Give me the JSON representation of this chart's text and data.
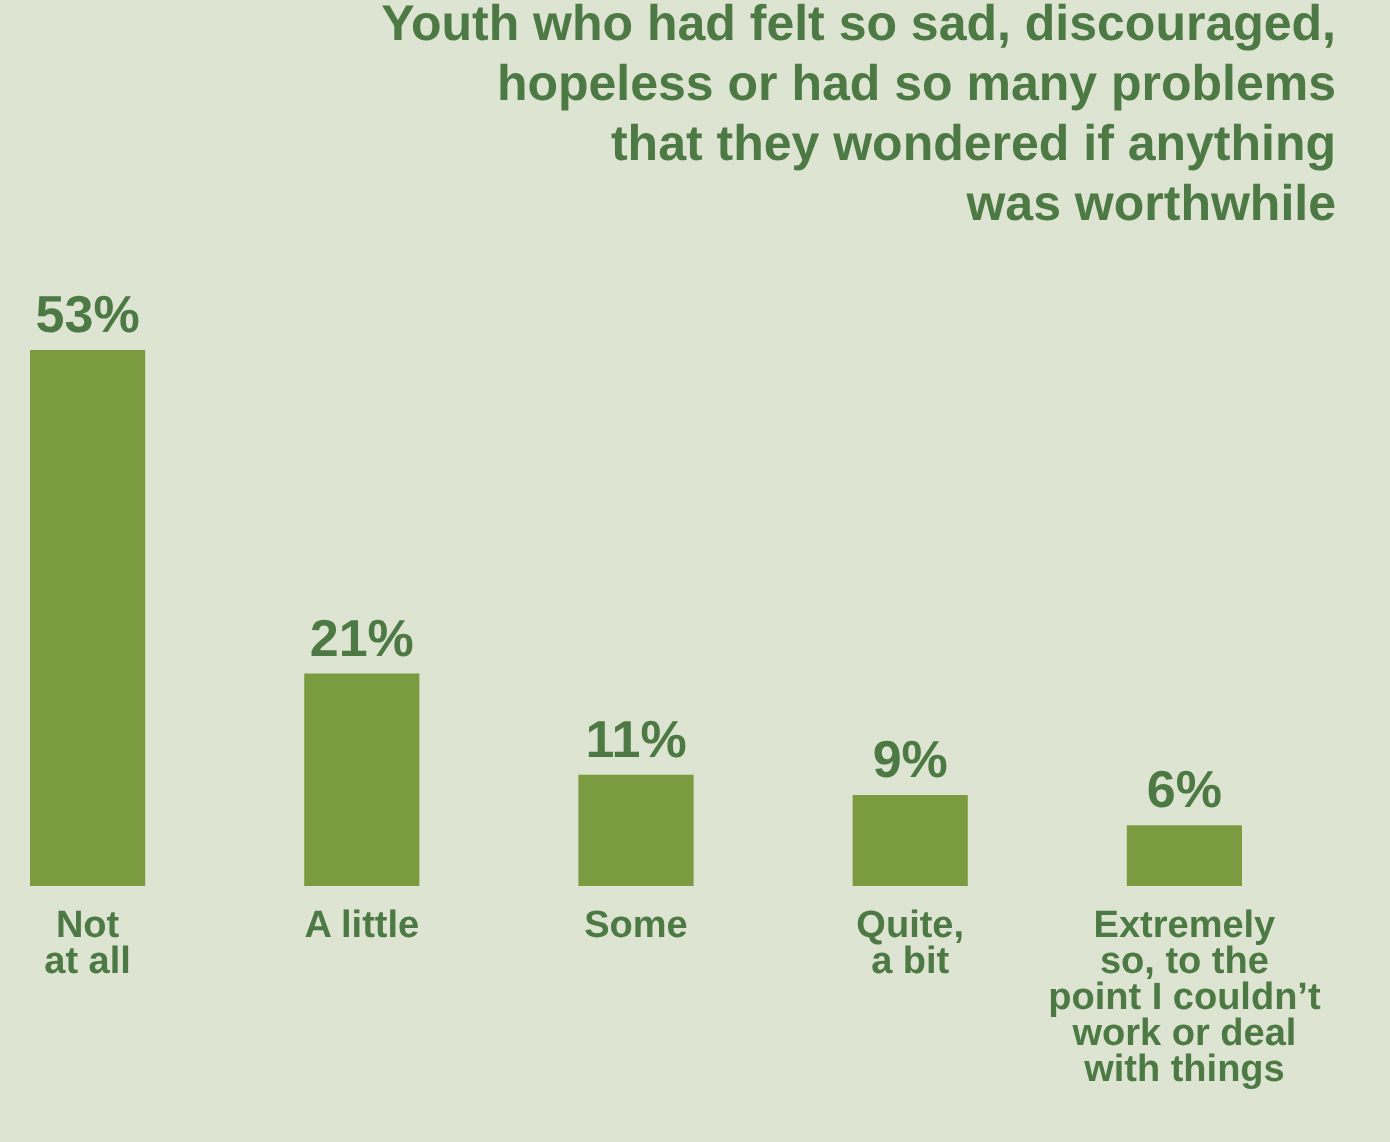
{
  "chart_data": {
    "type": "bar",
    "title": "Youth who had felt so sad, discouraged,\nhopeless or had so many problems\nthat they wondered if anything\nwas worthwhile",
    "categories": [
      "Not\nat all",
      "A little",
      "Some",
      "Quite,\na bit",
      "Extremely\nso, to the\npoint I couldn’t\nwork or deal\nwith things"
    ],
    "values": [
      53,
      21,
      11,
      9,
      6
    ],
    "value_labels": [
      "53%",
      "21%",
      "11%",
      "9%",
      "6%"
    ],
    "color": "#7a9b3f"
  }
}
